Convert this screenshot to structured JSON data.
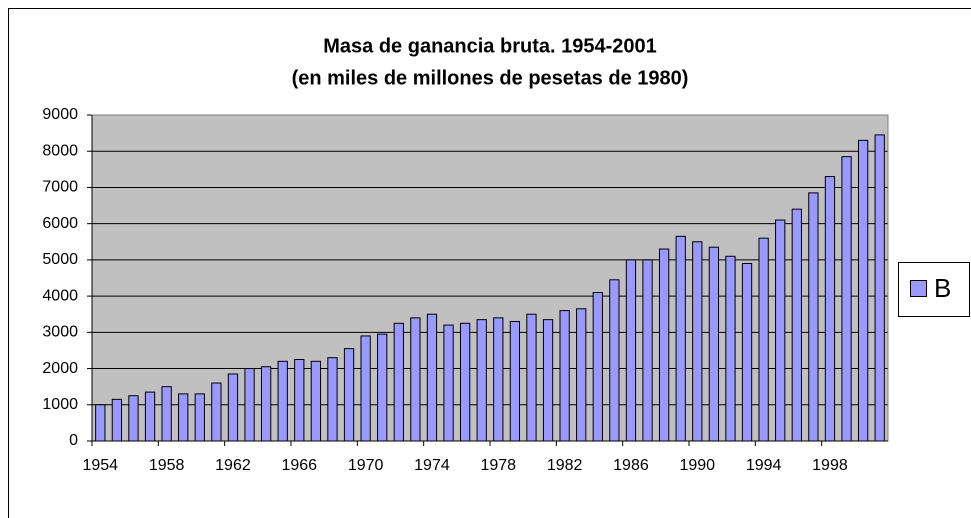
{
  "chart_data": {
    "type": "bar",
    "title": "Masa de ganancia bruta. 1954-2001",
    "subtitle": "(en miles de millones de pesetas de 1980)",
    "categories": [
      "1954",
      null,
      null,
      null,
      "1958",
      null,
      null,
      null,
      "1962",
      null,
      null,
      null,
      "1966",
      null,
      null,
      null,
      "1970",
      null,
      null,
      null,
      "1974",
      null,
      null,
      null,
      "1978",
      null,
      null,
      null,
      "1982",
      null,
      null,
      null,
      "1986",
      null,
      null,
      null,
      "1990",
      null,
      null,
      null,
      "1994",
      null,
      null,
      null,
      "1998",
      null,
      null,
      null
    ],
    "series": [
      {
        "name": "B",
        "color": "#9999ff",
        "values": [
          1000,
          1150,
          1250,
          1350,
          1500,
          1300,
          1300,
          1600,
          1850,
          2000,
          2050,
          2200,
          2250,
          2200,
          2300,
          2550,
          2900,
          2950,
          3250,
          3400,
          3500,
          3200,
          3250,
          3350,
          3400,
          3300,
          3500,
          3350,
          3600,
          3650,
          4100,
          4450,
          5000,
          5000,
          5300,
          5650,
          5500,
          5350,
          5100,
          4900,
          5600,
          6100,
          6400,
          6850,
          7300,
          7850,
          8300,
          8450
        ]
      }
    ],
    "ylim": [
      0,
      9000
    ],
    "yticks": [
      0,
      1000,
      2000,
      3000,
      4000,
      5000,
      6000,
      7000,
      8000,
      9000
    ],
    "grid": true,
    "legend": "right",
    "plot_background": "#c0c0c0"
  }
}
